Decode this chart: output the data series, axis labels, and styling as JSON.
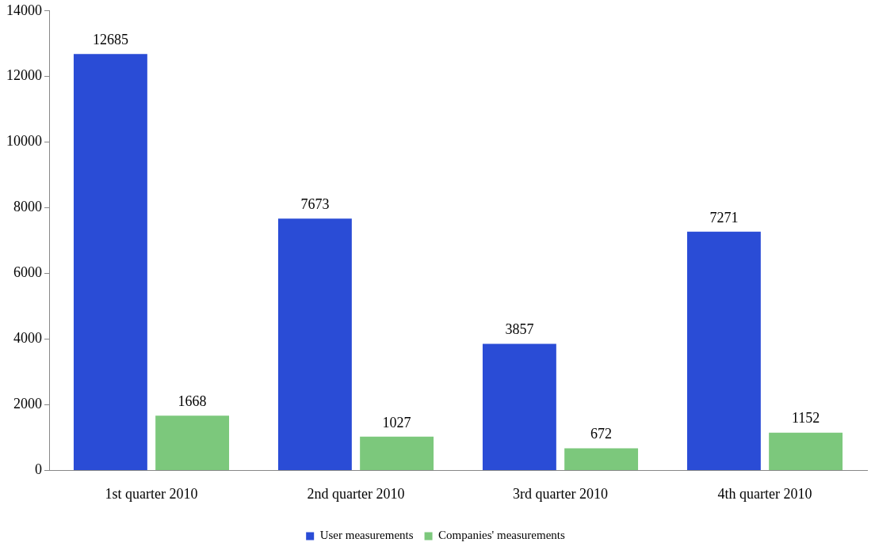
{
  "chart_data": {
    "type": "bar",
    "categories": [
      "1st quarter 2010",
      "2nd quarter 2010",
      "3rd quarter 2010",
      "4th quarter 2010"
    ],
    "series": [
      {
        "name": "User measurements",
        "color": "#2a4cd6",
        "values": [
          12685,
          7673,
          3857,
          7271
        ]
      },
      {
        "name": "Companies' measurements",
        "color": "#7cc87c",
        "values": [
          1668,
          1027,
          672,
          1152
        ]
      }
    ],
    "ylim": [
      0,
      14000
    ],
    "yticks": [
      0,
      2000,
      4000,
      6000,
      8000,
      10000,
      12000,
      14000
    ],
    "grid": false,
    "legend": "bottom",
    "data_labels": true
  }
}
